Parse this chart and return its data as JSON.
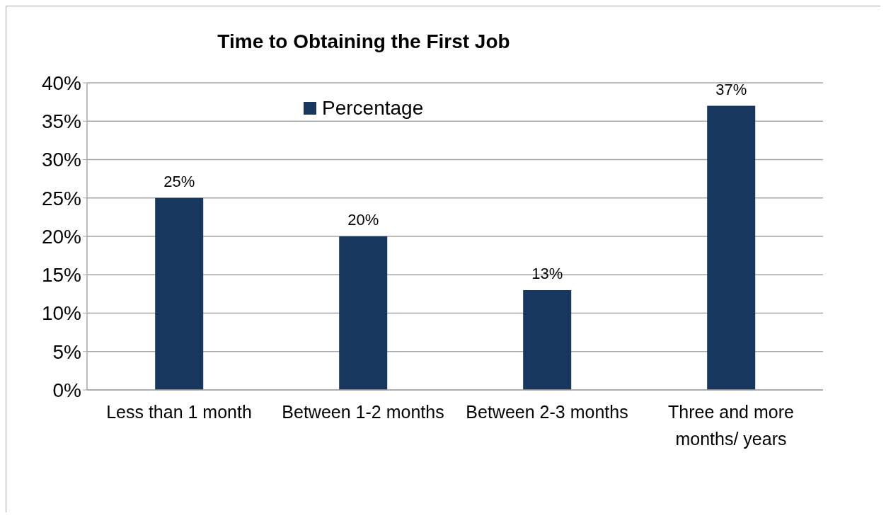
{
  "chart_data": {
    "type": "bar",
    "title": "Time to Obtaining the First Job",
    "categories": [
      "Less than 1 month",
      "Between 1-2 months",
      "Between 2-3 months",
      "Three and more months/ years"
    ],
    "series": [
      {
        "name": "Percentage",
        "color": "#17375e",
        "values": [
          25,
          20,
          13,
          37
        ],
        "value_labels": [
          "25%",
          "20%",
          "13%",
          "37%"
        ]
      }
    ],
    "ylim": [
      0,
      40
    ],
    "yticks": [
      {
        "value": 0,
        "label": "0%"
      },
      {
        "value": 5,
        "label": "5%"
      },
      {
        "value": 10,
        "label": "10%"
      },
      {
        "value": 15,
        "label": "15%"
      },
      {
        "value": 20,
        "label": "20%"
      },
      {
        "value": 25,
        "label": "25%"
      },
      {
        "value": 30,
        "label": "30%"
      },
      {
        "value": 35,
        "label": "35%"
      },
      {
        "value": 40,
        "label": "40%"
      }
    ],
    "grid": "y",
    "legend": "top"
  }
}
